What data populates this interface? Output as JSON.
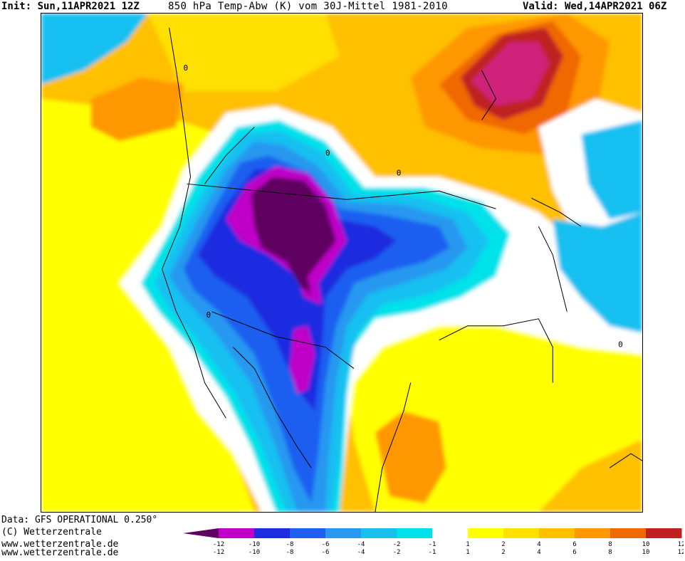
{
  "header": {
    "init": "Init: Sun,11APR2021 12Z",
    "title": "850 hPa Temp-Abw (K) vom 30J-Mittel 1981-2010",
    "valid": "Valid: Wed,14APR2021 06Z"
  },
  "footer": {
    "data_source": "Data: GFS OPERATIONAL 0.250°",
    "copyright": "(C) Wetterzentrale",
    "url1": "www.wetterzentrale.de",
    "url2": "www.wetterzentrale.de"
  },
  "legend": {
    "colors": [
      "#5e0060",
      "#c000c8",
      "#1e2ce0",
      "#1e5ef0",
      "#2898f0",
      "#18c0f0",
      "#00e2ea",
      "#ffffff",
      "#ffff00",
      "#ffe000",
      "#ffc000",
      "#ff9800",
      "#f06800",
      "#c02020",
      "#e80080"
    ],
    "labels_top": [
      "-12",
      "-10",
      "-8",
      "-6",
      "-4",
      "-2",
      "-1",
      "1",
      "2",
      "4",
      "6",
      "8",
      "10",
      "12"
    ],
    "labels_bottom": [
      "-12",
      "-10",
      "-8",
      "-6",
      "-4",
      "-2",
      "-1",
      "1",
      "2",
      "4",
      "6",
      "8",
      "10",
      "12"
    ]
  },
  "map": {
    "contour_label": "0",
    "palette": {
      "deep_purple": "#5e0060",
      "magenta": "#c000c8",
      "dark_blue": "#1e2ce0",
      "blue": "#1e5ef0",
      "mid_blue": "#2898f0",
      "light_blue": "#18c0f0",
      "cyan": "#00e2ea",
      "white": "#ffffff",
      "yellow": "#ffff00",
      "gold": "#ffe000",
      "amber": "#ffc000",
      "orange": "#ff9800",
      "dark_orange": "#f06800",
      "red": "#c02020"
    }
  }
}
